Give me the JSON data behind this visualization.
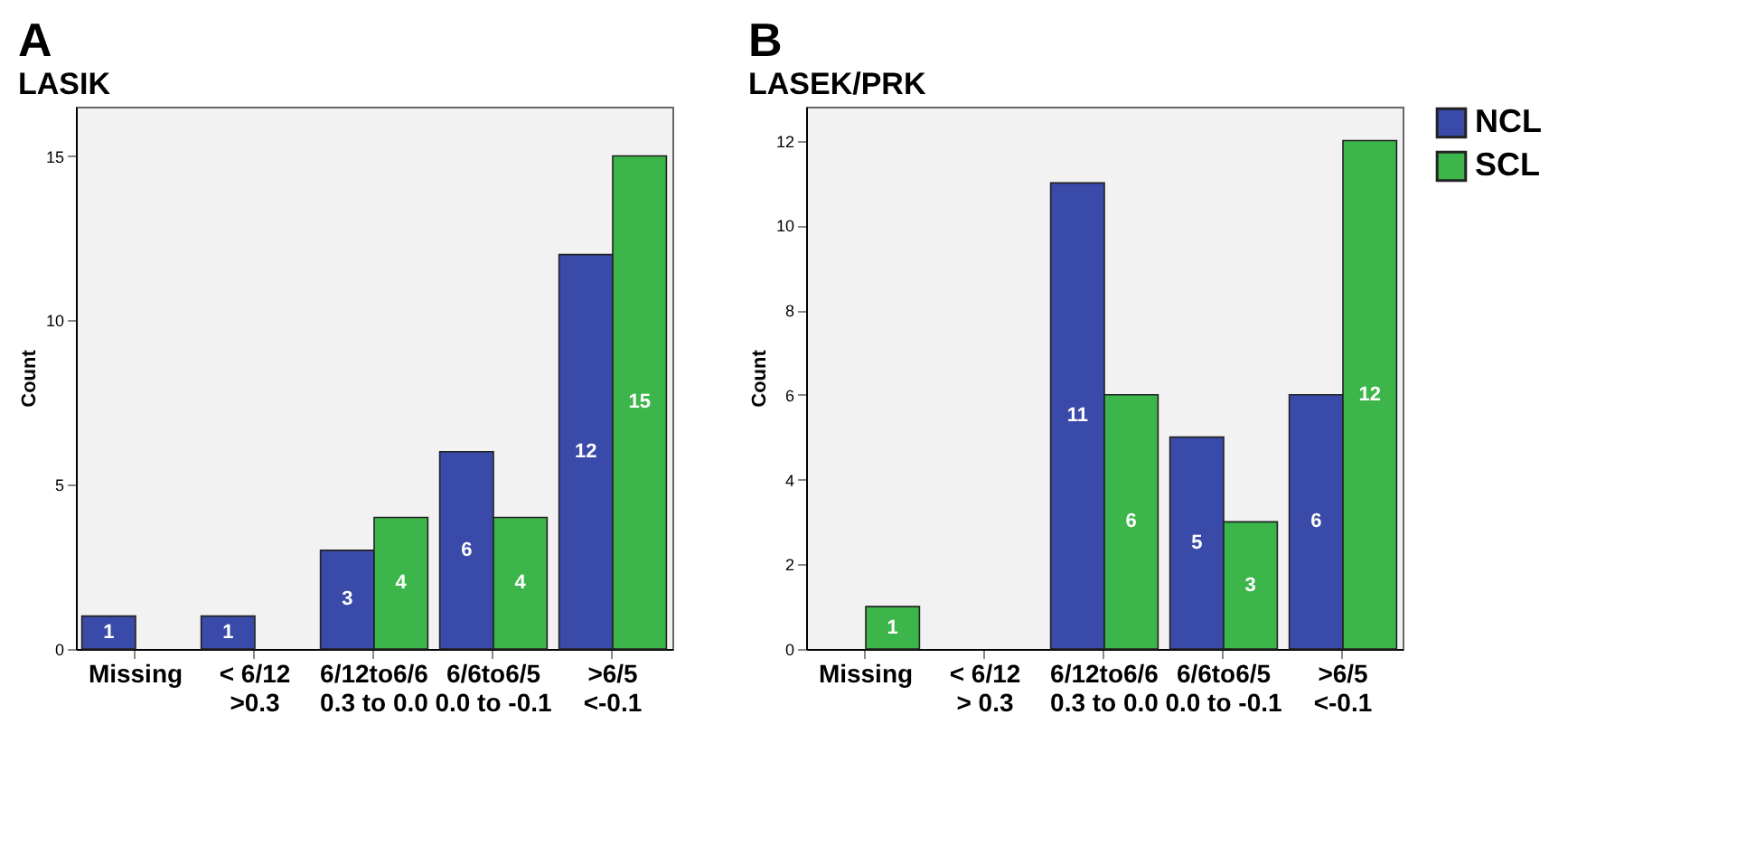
{
  "chart_data": [
    {
      "type": "bar",
      "title": "A",
      "subtitle": "LASIK",
      "ylabel": "Count",
      "categories": [
        "Missing",
        "< 6/12\n>0.3",
        "6/12to6/6\n0.3 to 0.0",
        "6/6to6/5\n0.0 to -0.1",
        ">6/5\n<-0.1"
      ],
      "series": [
        {
          "color": "#3a4aa8",
          "values": [
            1,
            1,
            3,
            6,
            12
          ]
        },
        {
          "color": "#3cb54a",
          "values": [
            null,
            null,
            4,
            4,
            15
          ]
        }
      ],
      "ylim": [
        0,
        16.5
      ],
      "yticks": [
        0,
        5,
        10,
        15
      ],
      "data_labels": true
    },
    {
      "type": "bar",
      "title": "B",
      "subtitle": "LASEK/PRK",
      "ylabel": "Count",
      "categories": [
        "Missing",
        "< 6/12\n> 0.3",
        "6/12to6/6\n0.3 to 0.0",
        "6/6to6/5\n0.0 to -0.1",
        ">6/5\n<-0.1"
      ],
      "series": [
        {
          "name": "NCL",
          "color": "#3a4aa8",
          "values": [
            null,
            null,
            11,
            5,
            6
          ]
        },
        {
          "name": "SCL",
          "color": "#3cb54a",
          "values": [
            1,
            null,
            6,
            3,
            12
          ]
        }
      ],
      "ylim": [
        0,
        12.8
      ],
      "yticks": [
        0,
        2,
        4,
        6,
        8,
        10,
        12
      ],
      "data_labels": true,
      "legend": "right"
    }
  ]
}
